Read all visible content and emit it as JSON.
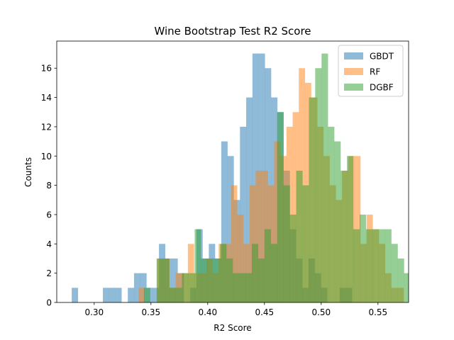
{
  "chart_data": {
    "type": "bar",
    "title": "Wine Bootstrap Test R2 Score",
    "xlabel": "R2 Score",
    "ylabel": "Counts",
    "xlim": [
      0.267,
      0.577
    ],
    "ylim": [
      0,
      17.85
    ],
    "xticks": [
      0.3,
      0.35,
      0.4,
      0.45,
      0.5,
      0.55
    ],
    "xtick_labels": [
      "0.30",
      "0.35",
      "0.40",
      "0.45",
      "0.50",
      "0.55"
    ],
    "yticks": [
      0,
      2,
      4,
      6,
      8,
      10,
      12,
      14,
      16
    ],
    "ytick_labels": [
      "0",
      "2",
      "4",
      "6",
      "8",
      "10",
      "12",
      "14",
      "16"
    ],
    "grid": false,
    "legend_position": "top-right",
    "alpha": 0.5,
    "series": [
      {
        "name": "GBDT",
        "color": "#1f77b4",
        "x0": 0.2802,
        "binwidth": 0.00549,
        "counts": [
          1,
          0,
          0,
          0,
          0,
          1,
          1,
          1,
          0,
          1,
          2,
          2,
          1,
          1,
          4,
          3,
          3,
          2,
          0,
          1,
          5,
          3,
          4,
          3,
          11,
          10,
          7,
          12,
          14,
          17,
          17,
          16,
          14,
          13,
          9,
          5,
          3,
          1,
          3,
          2,
          1,
          0,
          0,
          1,
          1,
          0,
          0,
          0,
          0,
          0
        ]
      },
      {
        "name": "RF",
        "color": "#ff7f0e",
        "x0": 0.3391,
        "binwidth": 0.00543,
        "counts": [
          1,
          0,
          0,
          3,
          3,
          1,
          2,
          2,
          4,
          2,
          2,
          3,
          2,
          4,
          4,
          8,
          6,
          4,
          8,
          9,
          9,
          8,
          11,
          10,
          12,
          13,
          16,
          15,
          14,
          12,
          10,
          8,
          7,
          9,
          10,
          10,
          4,
          6,
          5,
          4,
          2,
          1,
          1,
          0,
          1,
          0,
          1,
          0,
          0,
          0
        ]
      },
      {
        "name": "DGBF",
        "color": "#2ca02c",
        "x0": 0.3438,
        "binwidth": 0.00559,
        "counts": [
          1,
          0,
          3,
          3,
          1,
          1,
          2,
          2,
          5,
          3,
          3,
          3,
          4,
          3,
          2,
          2,
          2,
          4,
          3,
          5,
          4,
          13,
          8,
          6,
          9,
          8,
          14,
          16,
          17,
          12,
          11,
          9,
          10,
          5,
          6,
          5,
          5,
          5,
          5,
          4,
          3,
          2,
          1,
          2,
          1,
          1,
          1,
          1,
          0,
          1
        ]
      }
    ]
  }
}
